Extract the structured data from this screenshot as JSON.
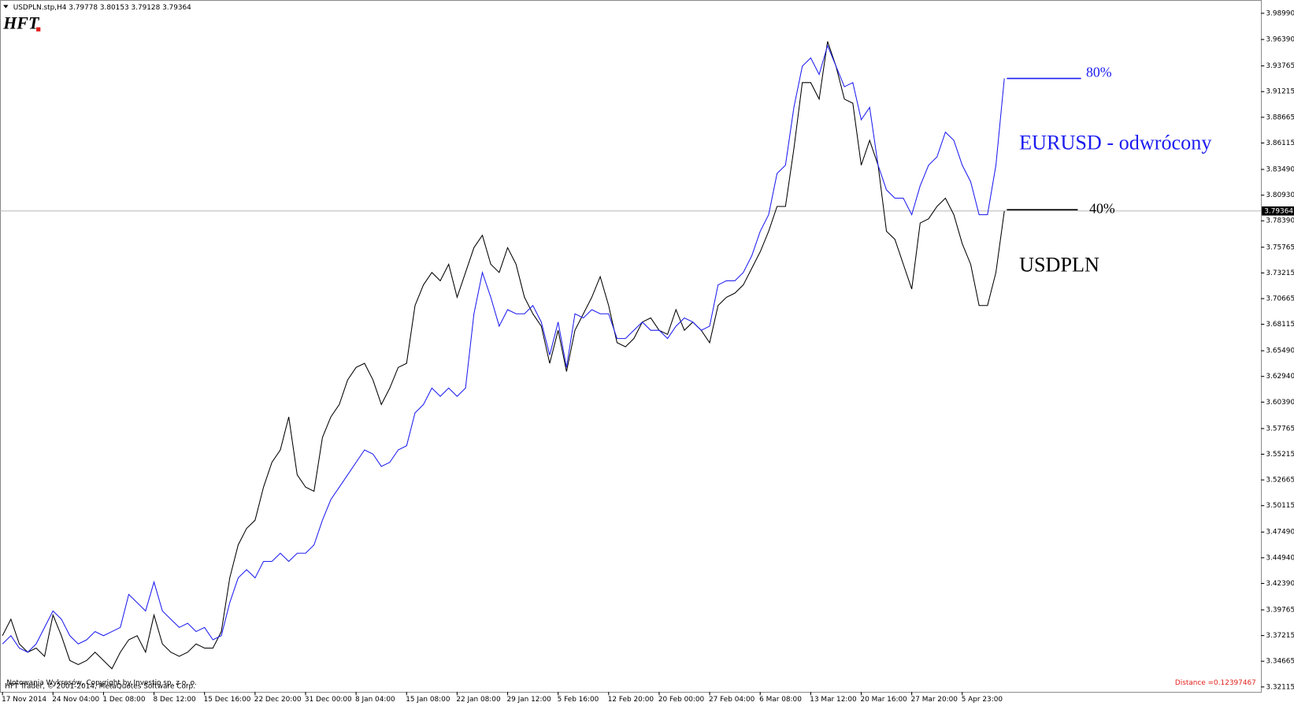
{
  "chart_data": {
    "type": "line",
    "header": "USDPLN.stp,H4  3.79778 3.80153 3.79128 3.79364",
    "logo": "HFT",
    "footer_lines": [
      "Notowania Wykresów, Copyright by Investio sp. z o. o.",
      "HFT Trader, © 2001-2014, MetaQuotes Software Corp."
    ],
    "distance": "Distance =0.12397467",
    "annotations": [
      {
        "text": "80%",
        "color": "#1c1cf0"
      },
      {
        "text": "EURUSD - odwrócony",
        "color": "#1c1cf0"
      },
      {
        "text": "40%",
        "color": "#000000"
      },
      {
        "text": "USDPLN",
        "color": "#000000"
      }
    ],
    "categories": [
      "17 Nov 2014",
      null,
      null,
      null,
      null,
      null,
      "24 Nov 04:00",
      null,
      null,
      null,
      null,
      null,
      "1 Dec 08:00",
      null,
      null,
      null,
      null,
      null,
      "8 Dec 12:00",
      null,
      null,
      null,
      null,
      null,
      "15 Dec 16:00",
      null,
      null,
      null,
      null,
      null,
      "22 Dec 20:00",
      null,
      null,
      null,
      null,
      null,
      "31 Dec 00:00",
      null,
      null,
      null,
      null,
      null,
      "8 Jan 04:00",
      null,
      null,
      null,
      null,
      null,
      "15 Jan 08:00",
      null,
      null,
      null,
      null,
      null,
      "22 Jan 08:00",
      null,
      null,
      null,
      null,
      null,
      "29 Jan 12:00",
      null,
      null,
      null,
      null,
      null,
      "5 Feb 16:00",
      null,
      null,
      null,
      null,
      null,
      "12 Feb 20:00",
      null,
      null,
      null,
      null,
      null,
      "20 Feb 00:00",
      null,
      null,
      null,
      null,
      null,
      "27 Feb 04:00",
      null,
      null,
      null,
      null,
      null,
      "6 Mar 08:00",
      null,
      null,
      null,
      null,
      null,
      "13 Mar 12:00",
      null,
      null,
      null,
      null,
      null,
      "20 Mar 16:00",
      null,
      null,
      null,
      null,
      null,
      "27 Mar 20:00",
      null,
      null,
      null,
      null,
      null,
      "5 Apr 23:00",
      null,
      null,
      null,
      null,
      null
    ],
    "series": [
      {
        "name": "USDPLN",
        "color": "#000000",
        "values": [
          3.372,
          3.3884,
          3.3638,
          3.3556,
          3.3597,
          3.3515,
          3.3925,
          3.372,
          3.3474,
          3.3433,
          3.3474,
          3.3556,
          3.3474,
          3.3392,
          3.3556,
          3.3679,
          3.372,
          3.3556,
          3.3925,
          3.3638,
          3.3556,
          3.3515,
          3.3556,
          3.3638,
          3.3597,
          3.3597,
          3.3761,
          3.4294,
          3.4621,
          3.4785,
          3.4867,
          3.5195,
          3.5441,
          3.5564,
          3.5892,
          3.5318,
          3.5195,
          3.5154,
          3.5687,
          3.5892,
          3.6015,
          3.626,
          3.6383,
          3.6424,
          3.626,
          3.6015,
          3.6178,
          3.6383,
          3.6424,
          3.6998,
          3.7203,
          3.7326,
          3.7244,
          3.7408,
          3.708,
          3.7326,
          3.7572,
          3.7695,
          3.7408,
          3.7326,
          3.7572,
          3.7408,
          3.708,
          3.6916,
          3.6793,
          3.6424,
          3.6752,
          3.6342,
          3.6752,
          3.6916,
          3.708,
          3.7285,
          3.6998,
          3.6629,
          3.6588,
          3.667,
          3.6834,
          3.6875,
          3.6752,
          3.6711,
          3.6957,
          3.6752,
          3.6834,
          3.6752,
          3.6629,
          3.6998,
          3.708,
          3.7121,
          3.7203,
          3.7367,
          3.7531,
          3.7735,
          3.7981,
          3.7981,
          3.8555,
          3.9211,
          3.9211,
          3.9047,
          3.962,
          3.9374,
          3.9047,
          3.9006,
          3.8391,
          3.8637,
          3.8391,
          3.7735,
          3.7654,
          3.7408,
          3.7162,
          3.7817,
          3.7858,
          3.7981,
          3.8063,
          3.7899,
          3.7612,
          3.7408,
          3.6998,
          3.6998,
          3.7326,
          3.7936
        ]
      },
      {
        "name": "EURUSD",
        "color": "#1c1cf0",
        "values": [
          3.3638,
          3.372,
          3.3597,
          3.3556,
          3.3638,
          3.3802,
          3.3966,
          3.3884,
          3.372,
          3.3638,
          3.3679,
          3.3761,
          3.372,
          3.3761,
          3.3802,
          3.413,
          3.4048,
          3.3966,
          3.4253,
          3.3966,
          3.3884,
          3.3802,
          3.3843,
          3.3761,
          3.3802,
          3.3679,
          3.372,
          3.4048,
          3.4294,
          3.4376,
          3.4294,
          3.4458,
          3.4458,
          3.4539,
          3.4458,
          3.4539,
          3.4539,
          3.4621,
          3.4867,
          3.5072,
          3.5195,
          3.5318,
          3.5441,
          3.5564,
          3.5523,
          3.54,
          3.5441,
          3.5564,
          3.5605,
          3.5932,
          3.6015,
          3.6178,
          3.6096,
          3.6178,
          3.6096,
          3.6178,
          3.6916,
          3.7326,
          3.708,
          3.6793,
          3.6957,
          3.6916,
          3.6916,
          3.6998,
          3.6834,
          3.6506,
          3.6834,
          3.6383,
          3.6916,
          3.6875,
          3.6957,
          3.6916,
          3.6916,
          3.667,
          3.667,
          3.6752,
          3.6834,
          3.6752,
          3.6752,
          3.667,
          3.6793,
          3.6875,
          3.6834,
          3.6752,
          3.6793,
          3.7203,
          3.7244,
          3.7244,
          3.7326,
          3.749,
          3.7735,
          3.7899,
          3.8309,
          3.8391,
          3.8965,
          3.9374,
          3.9456,
          3.9292,
          3.9579,
          3.9374,
          3.917,
          3.9211,
          3.8842,
          3.8965,
          3.8391,
          3.8145,
          3.8063,
          3.8063,
          3.7899,
          3.8186,
          3.8391,
          3.8473,
          3.8719,
          3.8637,
          3.8391,
          3.8227,
          3.7899,
          3.7899,
          3.8391,
          3.9252
        ]
      }
    ],
    "price_line": 3.79364,
    "ylim": [
      3.3162,
      4.0014
    ],
    "yticks": [
      {
        "value": 3.9899,
        "label": "3.98990"
      },
      {
        "value": 3.9639,
        "label": "3.96390"
      },
      3.93765,
      3.91215,
      3.88665,
      3.86115,
      {
        "value": 3.8349,
        "label": "3.83490"
      },
      {
        "value": 3.8093,
        "label": "3.80930"
      },
      {
        "value": 3.7839,
        "label": "3.78390"
      },
      3.75765,
      3.73215,
      3.70665,
      3.68115,
      {
        "value": 3.6549,
        "label": "3.65490"
      },
      {
        "value": 3.6294,
        "label": "3.62940"
      },
      {
        "value": 3.6039,
        "label": "3.60390"
      },
      3.57765,
      3.55215,
      3.52665,
      3.50115,
      {
        "value": 3.4749,
        "label": "3.47490"
      },
      {
        "value": 3.4494,
        "label": "3.44940"
      },
      {
        "value": 3.4239,
        "label": "3.42390"
      },
      3.39765,
      3.37215,
      3.34665,
      3.32115
    ],
    "grid": false
  }
}
